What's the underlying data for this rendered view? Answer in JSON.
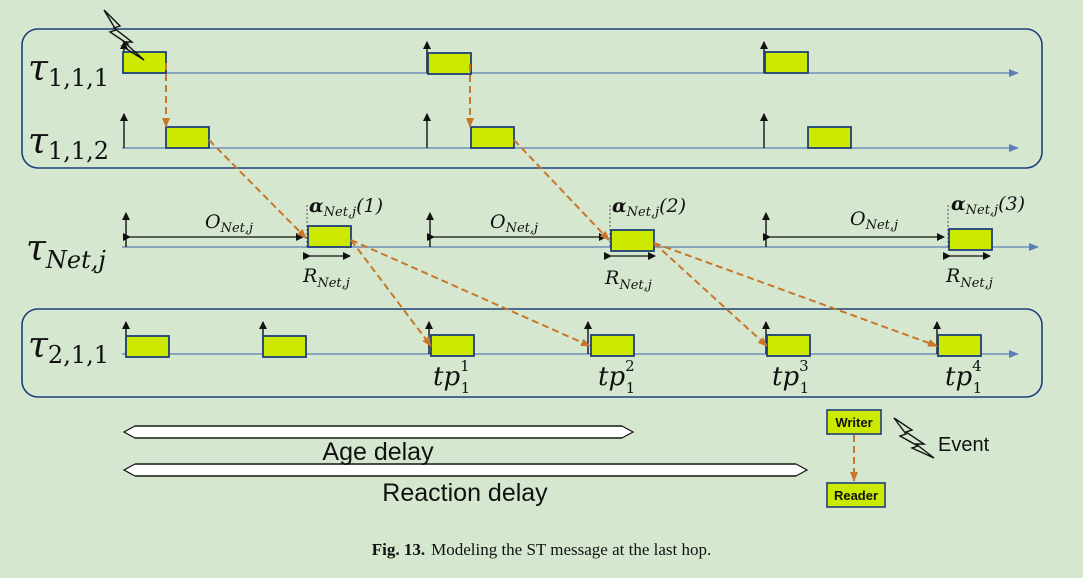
{
  "colors": {
    "background": "#d5e8cf",
    "job_fill": "#ccea00",
    "job_stroke": "#1f3f7a",
    "timeline": "#5b7fb5",
    "dependency_arrow": "#c8762a"
  },
  "tasks": [
    {
      "base": "τ",
      "sub": "1,1,1"
    },
    {
      "base": "τ",
      "sub": "1,1,2"
    },
    {
      "base": "τ",
      "sub": "Net,j"
    },
    {
      "base": "τ",
      "sub": "2,1,1"
    }
  ],
  "network": {
    "offset_base": "O",
    "offset_sub": "Net,j",
    "response_base": "R",
    "response_sub": "Net,j",
    "alpha_base": "α",
    "alpha_sub": "Net,j",
    "alpha_indices": [
      "(1)",
      "(2)",
      "(3)"
    ]
  },
  "time_points": [
    {
      "base": "tp",
      "sub": "1",
      "sup": "1"
    },
    {
      "base": "tp",
      "sub": "1",
      "sup": "2"
    },
    {
      "base": "tp",
      "sub": "1",
      "sup": "3"
    },
    {
      "base": "tp",
      "sub": "1",
      "sup": "4"
    }
  ],
  "delays": {
    "age": "Age delay",
    "reaction": "Reaction delay"
  },
  "legend": {
    "writer": "Writer",
    "reader": "Reader",
    "event": "Event"
  },
  "caption": {
    "number": "Fig. 13.",
    "text": "Modeling the ST message at the last hop."
  }
}
